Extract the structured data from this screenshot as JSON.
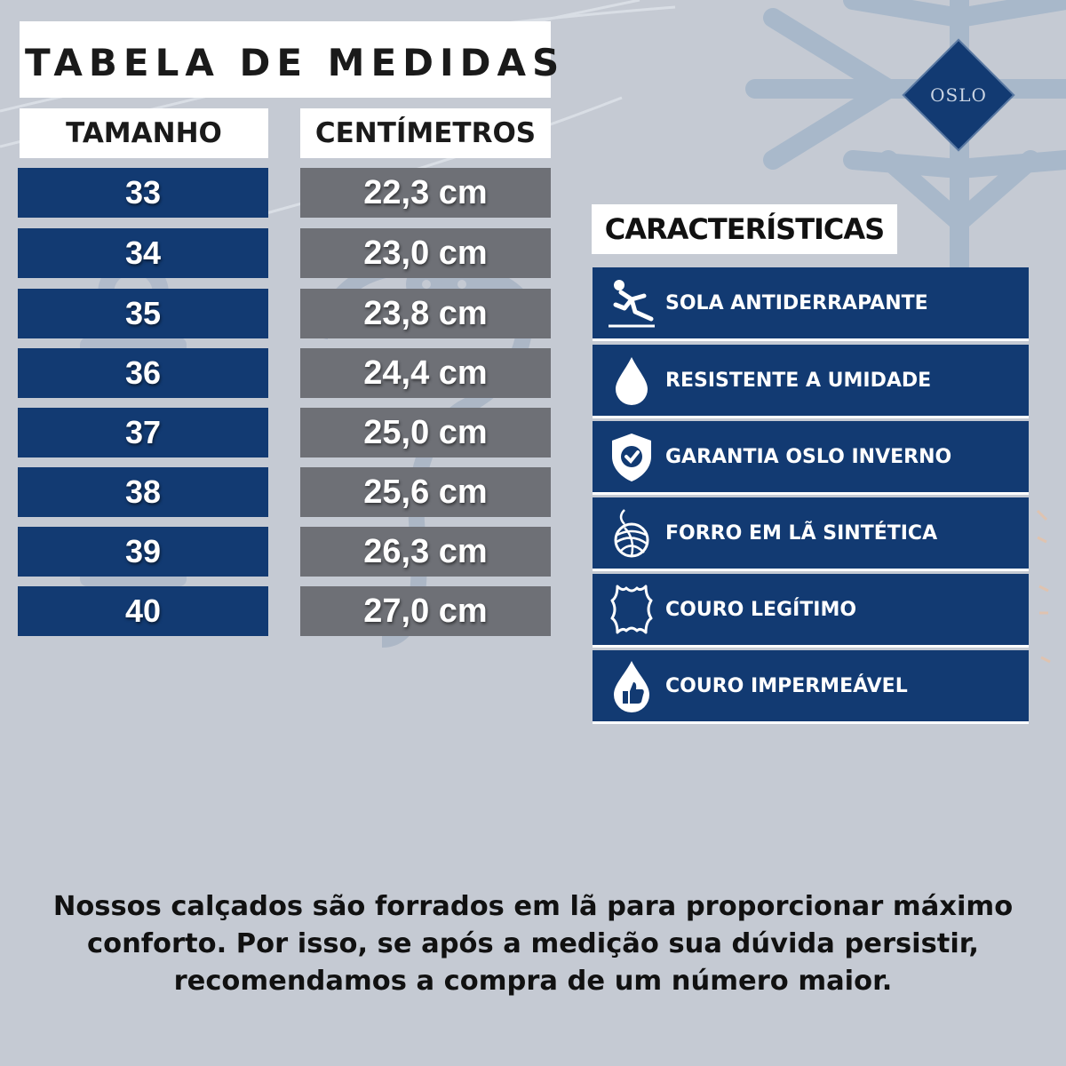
{
  "table": {
    "title": "TABELA DE MEDIDAS",
    "header_size": "TAMANHO",
    "header_cm": "CENTÍMETROS",
    "rows": [
      {
        "size": "33",
        "cm": "22,3 cm"
      },
      {
        "size": "34",
        "cm": "23,0 cm"
      },
      {
        "size": "35",
        "cm": "23,8 cm"
      },
      {
        "size": "36",
        "cm": "24,4 cm"
      },
      {
        "size": "37",
        "cm": "25,0 cm"
      },
      {
        "size": "38",
        "cm": "25,6 cm"
      },
      {
        "size": "39",
        "cm": "26,3 cm"
      },
      {
        "size": "40",
        "cm": "27,0 cm"
      }
    ]
  },
  "features": {
    "title": "CARACTERÍSTICAS",
    "items": [
      {
        "label": "SOLA ANTIDERRAPANTE",
        "icon": "slipping-person-icon"
      },
      {
        "label": "RESISTENTE A UMIDADE",
        "icon": "water-drop-icon"
      },
      {
        "label": "GARANTIA OSLO INVERNO",
        "icon": "shield-check-icon"
      },
      {
        "label": "FORRO EM LÃ SINTÉTICA",
        "icon": "yarn-ball-icon"
      },
      {
        "label": "COURO LEGÍTIMO",
        "icon": "leather-hide-icon"
      },
      {
        "label": "COURO IMPERMEÁVEL",
        "icon": "drop-thumbs-up-icon"
      }
    ]
  },
  "logo": {
    "text": "OSLO"
  },
  "footer": {
    "lines": [
      "Nossos calçados são forrados em lã para proporcionar máximo",
      "conforto. Por isso, se após a medição sua dúvida persistir,",
      "recomendamos a compra de um número maior."
    ]
  },
  "colors": {
    "background": "#c5cad3",
    "navy": "#123a72",
    "gray_cell": "#6e7076",
    "snowflake": "#9fb3c8"
  }
}
